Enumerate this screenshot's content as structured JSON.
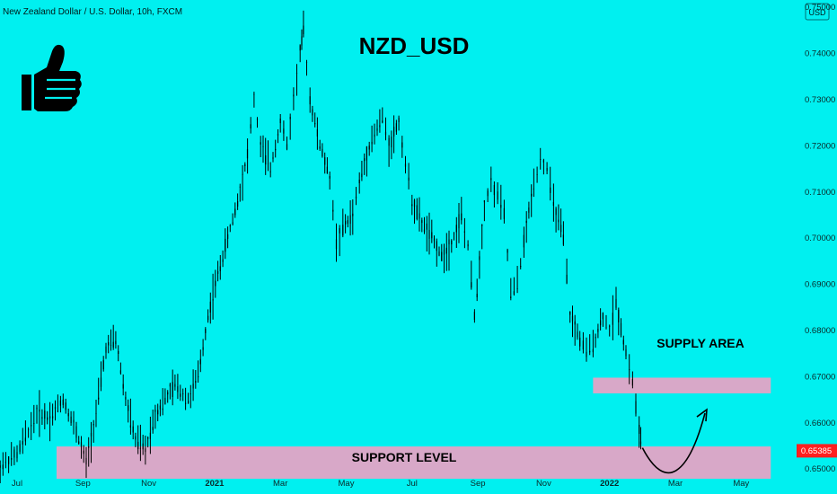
{
  "header": {
    "symbol_info": "New Zealand Dollar / U.S. Dollar, 10h, FXCM",
    "currency_badge": "USD"
  },
  "colors": {
    "background": "#00f0f0",
    "candles": "#000000",
    "zone_fill": "#d8a8c8",
    "price_tag": "#ff1f1f"
  },
  "icons": {
    "thumb": "thumbs-up-icon"
  },
  "chart_data": {
    "type": "candlestick",
    "title": "NZD_USD",
    "y_ticks": [
      "0.75000",
      "0.74000",
      "0.73000",
      "0.72000",
      "0.71000",
      "0.70000",
      "0.69000",
      "0.68000",
      "0.67000",
      "0.66000",
      "0.65000"
    ],
    "ylim": [
      0.6445,
      0.7515
    ],
    "x_ticks": [
      "Jul",
      "Sep",
      "Nov",
      "2021",
      "Mar",
      "May",
      "Jul",
      "Sep",
      "Nov",
      "2022",
      "Mar",
      "May"
    ],
    "current_price": {
      "label": "0.65385",
      "value": 0.65385
    },
    "zones": [
      {
        "name": "SUPPLY AREA",
        "from_tick": 8.75,
        "to_tick": 11.45,
        "low": 0.6663,
        "high": 0.6697
      },
      {
        "name": "SUPPORT LEVEL",
        "from_tick": 0.6,
        "to_tick": 11.45,
        "low": 0.6478,
        "high": 0.6548
      }
    ],
    "projection": [
      [
        9.5,
        0.6545
      ],
      [
        9.85,
        0.6497
      ],
      [
        10.2,
        0.6525
      ],
      [
        10.45,
        0.662
      ]
    ],
    "price_path": [
      [
        -0.3,
        0.65
      ],
      [
        0.0,
        0.653
      ],
      [
        0.3,
        0.662
      ],
      [
        0.5,
        0.661
      ],
      [
        0.7,
        0.665
      ],
      [
        0.9,
        0.658
      ],
      [
        1.05,
        0.651
      ],
      [
        1.2,
        0.662
      ],
      [
        1.35,
        0.676
      ],
      [
        1.5,
        0.678
      ],
      [
        1.65,
        0.665
      ],
      [
        1.8,
        0.656
      ],
      [
        1.95,
        0.654
      ],
      [
        2.1,
        0.662
      ],
      [
        2.25,
        0.665
      ],
      [
        2.4,
        0.668
      ],
      [
        2.6,
        0.665
      ],
      [
        2.75,
        0.67
      ],
      [
        2.9,
        0.683
      ],
      [
        3.05,
        0.692
      ],
      [
        3.2,
        0.7
      ],
      [
        3.35,
        0.708
      ],
      [
        3.5,
        0.718
      ],
      [
        3.6,
        0.73
      ],
      [
        3.7,
        0.72
      ],
      [
        3.85,
        0.715
      ],
      [
        4.0,
        0.725
      ],
      [
        4.1,
        0.72
      ],
      [
        4.2,
        0.73
      ],
      [
        4.3,
        0.74
      ],
      [
        4.35,
        0.745
      ],
      [
        4.45,
        0.73
      ],
      [
        4.6,
        0.72
      ],
      [
        4.75,
        0.713
      ],
      [
        4.85,
        0.699
      ],
      [
        4.95,
        0.702
      ],
      [
        5.1,
        0.705
      ],
      [
        5.2,
        0.712
      ],
      [
        5.35,
        0.72
      ],
      [
        5.55,
        0.726
      ],
      [
        5.65,
        0.72
      ],
      [
        5.8,
        0.725
      ],
      [
        5.9,
        0.716
      ],
      [
        6.0,
        0.708
      ],
      [
        6.15,
        0.703
      ],
      [
        6.3,
        0.7
      ],
      [
        6.45,
        0.696
      ],
      [
        6.6,
        0.699
      ],
      [
        6.75,
        0.705
      ],
      [
        6.85,
        0.698
      ],
      [
        6.95,
        0.683
      ],
      [
        7.1,
        0.707
      ],
      [
        7.2,
        0.712
      ],
      [
        7.3,
        0.709
      ],
      [
        7.4,
        0.705
      ],
      [
        7.5,
        0.688
      ],
      [
        7.6,
        0.69
      ],
      [
        7.7,
        0.699
      ],
      [
        7.85,
        0.712
      ],
      [
        7.95,
        0.717
      ],
      [
        8.05,
        0.715
      ],
      [
        8.15,
        0.707
      ],
      [
        8.3,
        0.7
      ],
      [
        8.4,
        0.683
      ],
      [
        8.55,
        0.678
      ],
      [
        8.65,
        0.675
      ],
      [
        8.75,
        0.677
      ],
      [
        8.9,
        0.683
      ],
      [
        9.0,
        0.68
      ],
      [
        9.1,
        0.686
      ],
      [
        9.25,
        0.675
      ],
      [
        9.35,
        0.669
      ],
      [
        9.45,
        0.658
      ],
      [
        9.5,
        0.6545
      ]
    ]
  },
  "annotations": {
    "supply_label": "SUPPLY AREA",
    "support_label": "SUPPORT LEVEL"
  }
}
